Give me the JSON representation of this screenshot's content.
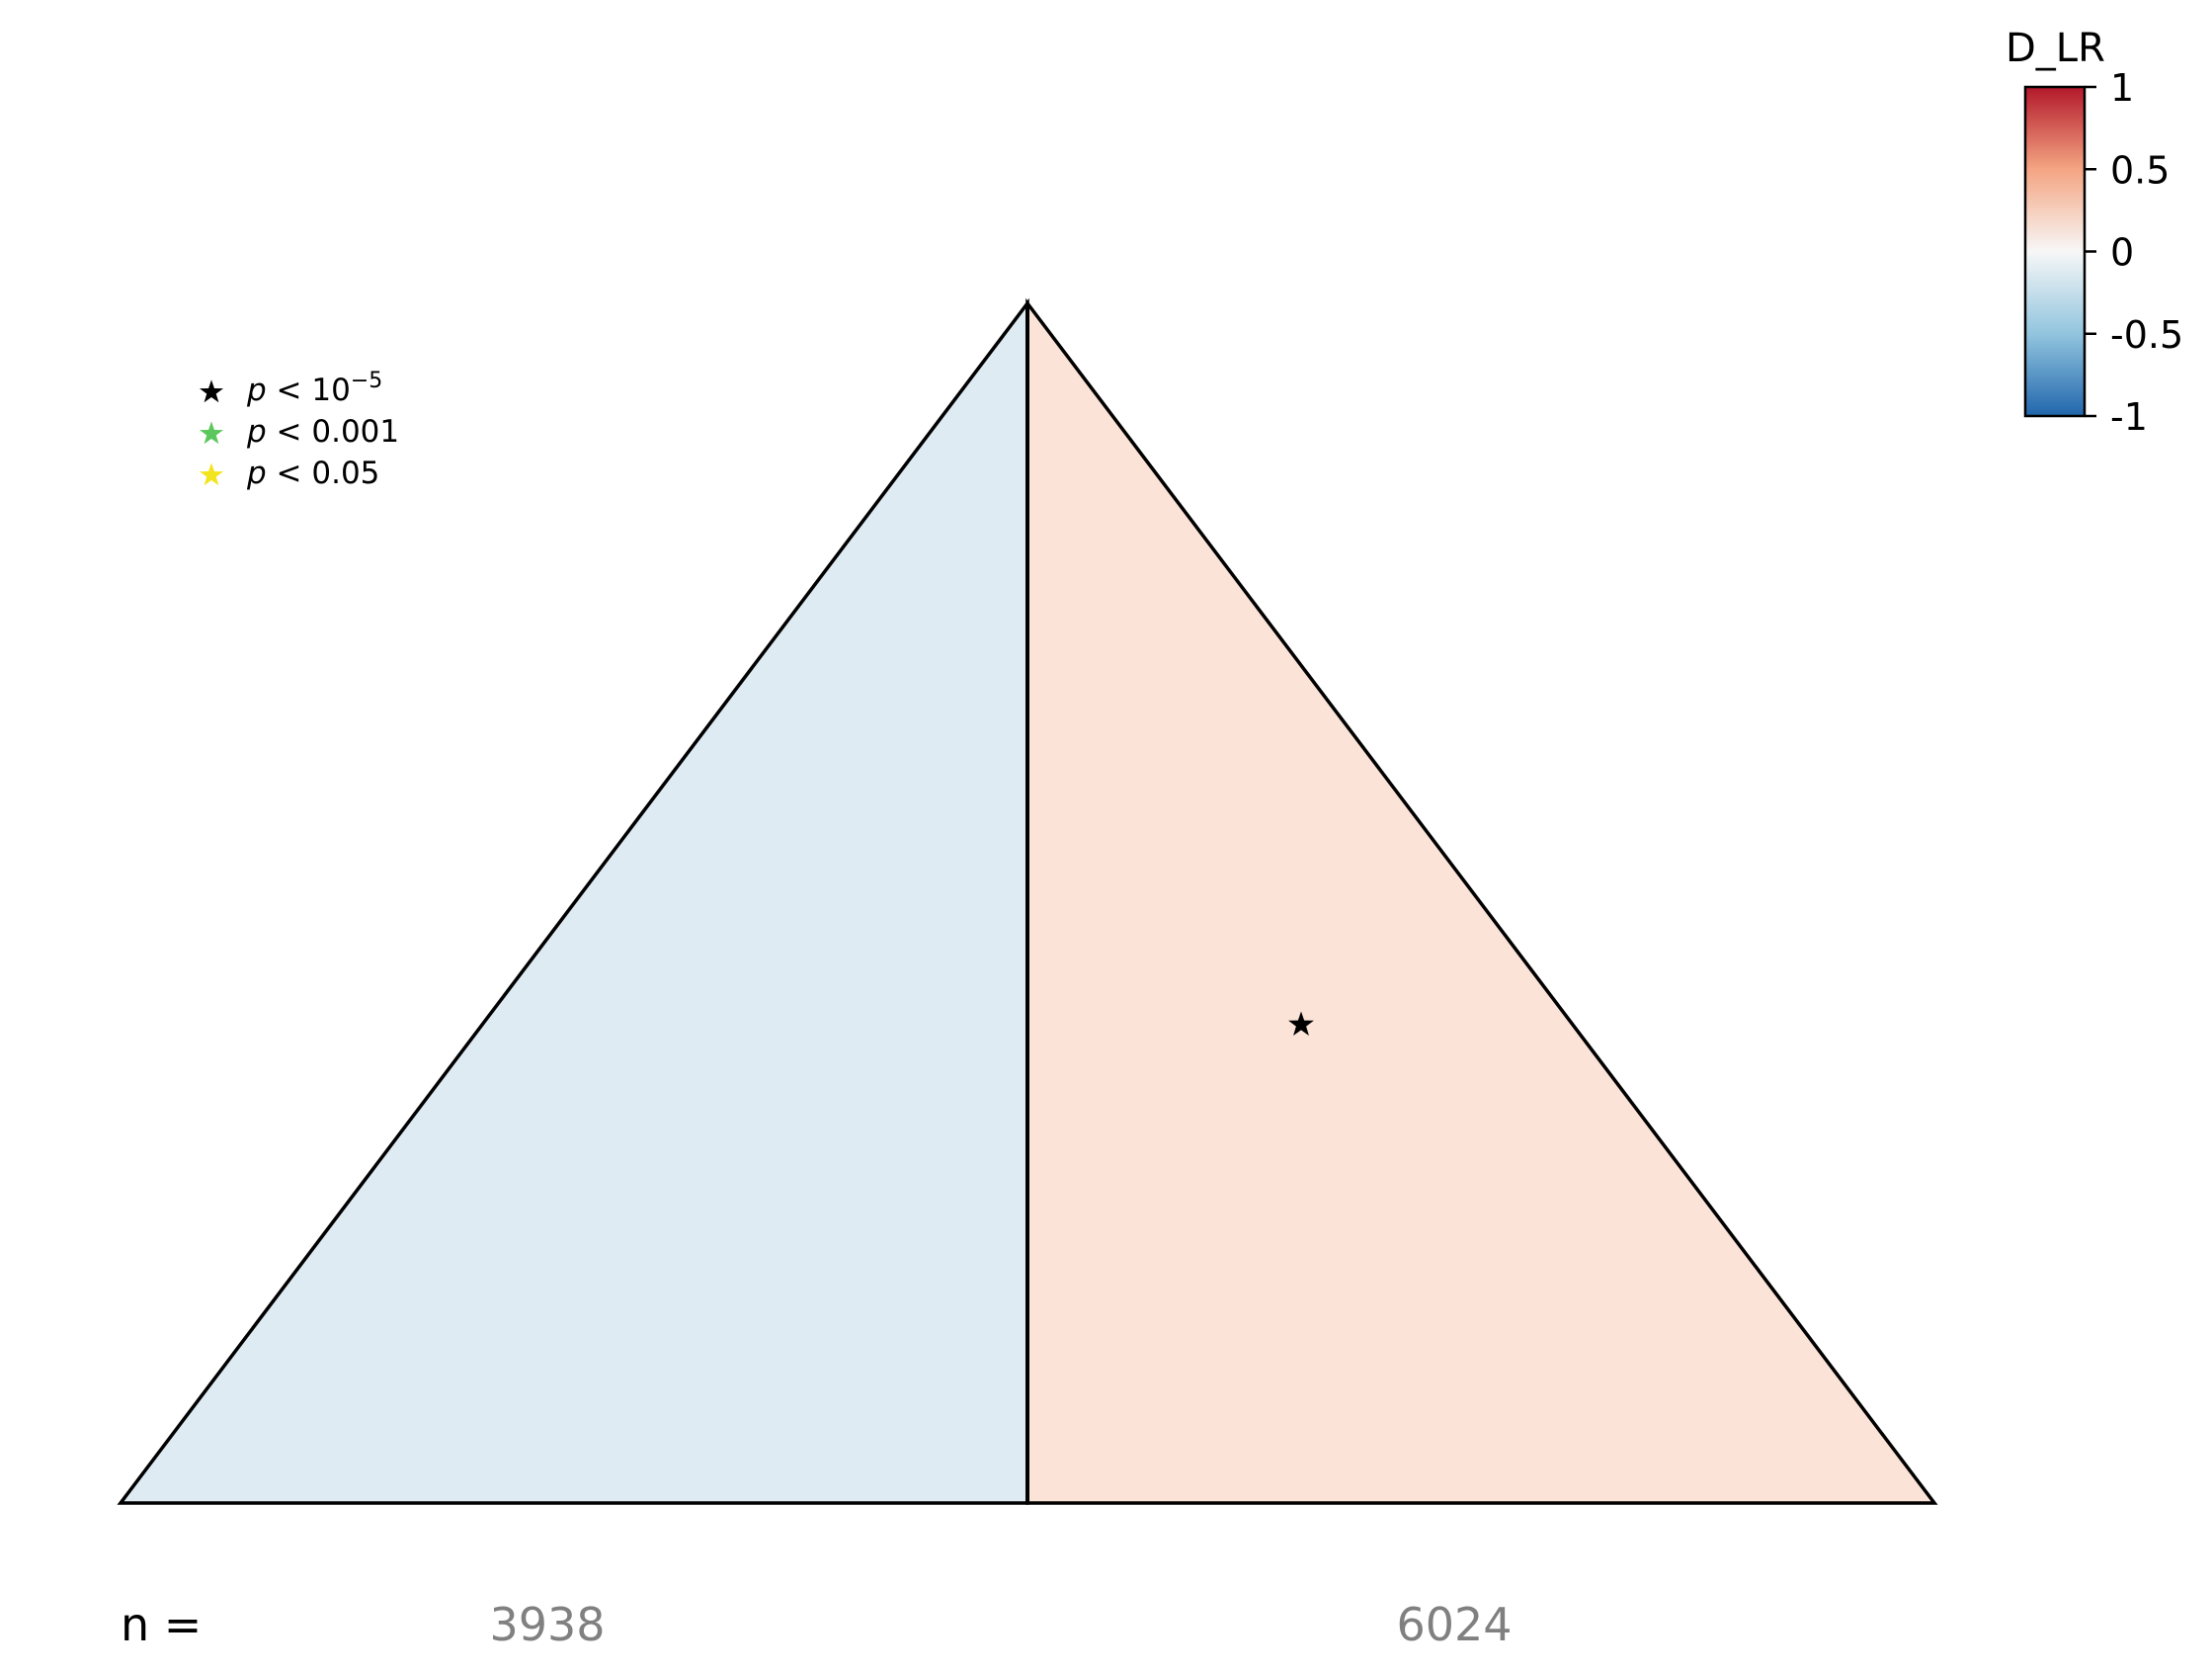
{
  "chart_data": {
    "type": "heatmap",
    "title": "",
    "regions": [
      {
        "name": "left",
        "n": 3938,
        "value": -0.12,
        "significance": null
      },
      {
        "name": "right",
        "n": 6024,
        "value": 0.12,
        "significance": "p < 10^-5"
      }
    ],
    "n_label": "n =",
    "colorbar": {
      "label": "D_LR",
      "range": [
        -1,
        1
      ],
      "ticks": [
        1,
        0.5,
        0,
        -0.5,
        -1
      ],
      "tick_labels": [
        "1",
        "0.5",
        "0",
        "-0.5",
        "-1"
      ],
      "colormap": "RdBu_r"
    },
    "legend": {
      "placement": "top-left",
      "items": [
        {
          "p": "p",
          "rel": "<",
          "base": "10",
          "exp": "−5",
          "color": "#000000"
        },
        {
          "p": "p",
          "rel": "<",
          "base": "0.001",
          "exp": "",
          "color": "#5cc75c"
        },
        {
          "p": "p",
          "rel": "<",
          "base": "0.05",
          "exp": "",
          "color": "#f2e41f"
        }
      ]
    },
    "colors": {
      "negative_fill": "#dfebf3",
      "positive_fill": "#fce3d8",
      "count_text": "#808080"
    }
  }
}
